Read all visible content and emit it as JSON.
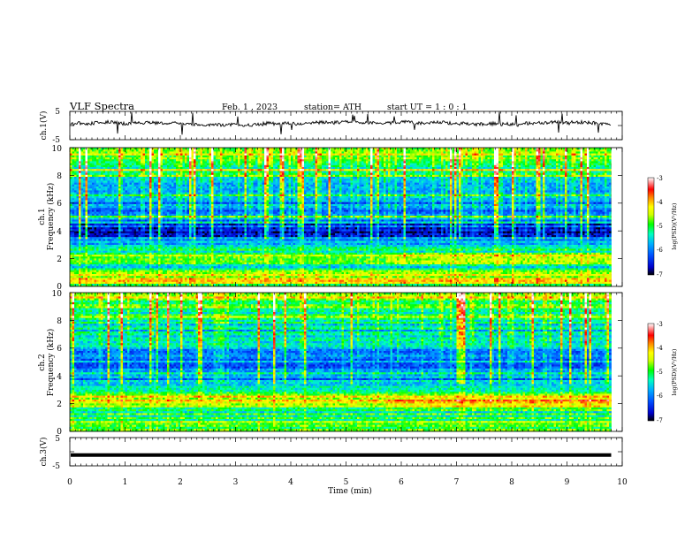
{
  "header": {
    "title": "VLF  Spectra",
    "date": "Feb. 1  , 2023",
    "station": "station= ATH",
    "start": "start  UT  =   1 : 0  : 1"
  },
  "chart_data": [
    {
      "type": "line",
      "panel": "ch1-waveform",
      "ylabel": "ch.1(V)",
      "yticks": [
        "5",
        "-5"
      ],
      "ylim": [
        -5,
        5
      ],
      "xlim": [
        0,
        10
      ],
      "trace_level": 0.5,
      "trace_noise": 0.6,
      "trace_end_min": 9.8,
      "color": "#000000"
    },
    {
      "type": "heatmap",
      "panel": "ch1-spectrogram",
      "ylabel_top": "ch.1",
      "ylabel": "Frequency  (kHz)",
      "yticks": [
        "10",
        "8",
        "6",
        "4",
        "2",
        "0"
      ],
      "ylim": [
        0,
        10
      ],
      "xlim": [
        0,
        10
      ],
      "data_end_min": 9.8,
      "colorbar": {
        "ticks": [
          "-3",
          "-4",
          "-5",
          "-6",
          "-7"
        ],
        "range": [
          -7,
          -3
        ],
        "label": "log(PSD)(V²/Hz)",
        "colors": [
          "#000000",
          "#0000cc",
          "#0050ff",
          "#00b0ff",
          "#00ffc0",
          "#00ff00",
          "#d0ff00",
          "#ffff00",
          "#ff8000",
          "#ff0000",
          "#ffffff"
        ]
      },
      "band_profile": {
        "freq_khz": [
          0,
          0.5,
          1,
          1.5,
          2,
          2.3,
          2.8,
          3.5,
          4,
          4.5,
          5,
          6,
          7,
          8,
          9,
          10
        ],
        "log_psd": [
          -5.2,
          -4.3,
          -4.8,
          -5.4,
          -4.9,
          -4.5,
          -5.6,
          -6.1,
          -6.6,
          -6.3,
          -5.8,
          -5.9,
          -5.6,
          -5.3,
          -4.9,
          -4.6
        ]
      }
    },
    {
      "type": "heatmap",
      "panel": "ch2-spectrogram",
      "ylabel_top": "ch.2",
      "ylabel": "Frequency  (kHz)",
      "yticks": [
        "10",
        "8",
        "6",
        "4",
        "2",
        "0"
      ],
      "ylim": [
        0,
        10
      ],
      "xlim": [
        0,
        10
      ],
      "data_end_min": 9.8,
      "colorbar": {
        "ticks": [
          "-3",
          "-4",
          "-5",
          "-6",
          "-7"
        ],
        "range": [
          -7,
          -3
        ],
        "label": "log(PSD)(V²/Hz)",
        "colors": [
          "#000000",
          "#0000cc",
          "#0050ff",
          "#00b0ff",
          "#00ffc0",
          "#00ff00",
          "#d0ff00",
          "#ffff00",
          "#ff8000",
          "#ff0000",
          "#ffffff"
        ]
      },
      "band_profile": {
        "freq_khz": [
          0,
          0.5,
          1,
          1.5,
          2,
          2.3,
          2.8,
          3.5,
          4,
          4.5,
          5,
          6,
          7,
          8,
          9,
          10
        ],
        "log_psd": [
          -5.0,
          -4.6,
          -5.1,
          -5.3,
          -4.5,
          -4.4,
          -5.2,
          -5.5,
          -6.0,
          -6.1,
          -5.8,
          -5.8,
          -5.6,
          -5.3,
          -5.0,
          -4.7
        ]
      }
    },
    {
      "type": "line",
      "panel": "ch3-waveform",
      "ylabel": "ch.3(V)",
      "yticks": [
        "5",
        "-5"
      ],
      "ylim": [
        -5,
        5
      ],
      "xlim": [
        0,
        10
      ],
      "trace_level": -1.2,
      "trace_end_min": 9.8,
      "color": "#000000",
      "xlabel": "Time  (min)",
      "xticks": [
        "0",
        "1",
        "2",
        "3",
        "4",
        "5",
        "6",
        "7",
        "8",
        "9",
        "10"
      ]
    }
  ]
}
